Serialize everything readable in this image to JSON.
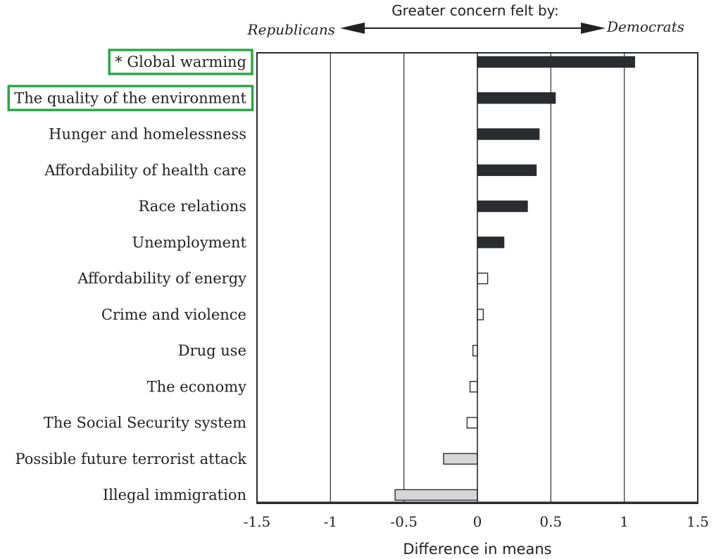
{
  "chart_data": {
    "type": "bar",
    "orientation": "horizontal",
    "header": "Greater concern felt by:",
    "direction_labels": {
      "left": "Republicans",
      "right": "Democrats"
    },
    "xlabel": "Difference in means",
    "xlim": [
      -1.5,
      1.5
    ],
    "ticks": [
      -1.5,
      -1,
      -0.5,
      0,
      0.5,
      1,
      1.5
    ],
    "tick_labels": [
      "-1.5",
      "-1",
      "-0.5",
      "0",
      "0.5",
      "1",
      "1.5"
    ],
    "gridlines_at": [
      -1,
      -0.5,
      0.5,
      1
    ],
    "highlighted_categories": [
      "* Global warming",
      "The quality of the environment"
    ],
    "highlight_color": "#2aa84a",
    "style_colors": {
      "significant": "#2b2c30",
      "not_significant": "#ffffff",
      "republican": "#d6d6d6",
      "border": "#2b2c30"
    },
    "categories": [
      "* Global warming",
      "The quality of the environment",
      "Hunger and homelessness",
      "Affordability of health care",
      "Race relations",
      "Unemployment",
      "Affordability of energy",
      "Crime and violence",
      "Drug use",
      "The economy",
      "The Social Security system",
      "Possible future terrorist attack",
      "Illegal immigration"
    ],
    "values": [
      1.07,
      0.53,
      0.42,
      0.4,
      0.34,
      0.18,
      0.07,
      0.04,
      -0.03,
      -0.05,
      -0.07,
      -0.23,
      -0.56
    ],
    "bar_styles": [
      "significant",
      "significant",
      "significant",
      "significant",
      "significant",
      "significant",
      "not_significant",
      "not_significant",
      "not_significant",
      "not_significant",
      "not_significant",
      "republican",
      "republican"
    ]
  }
}
